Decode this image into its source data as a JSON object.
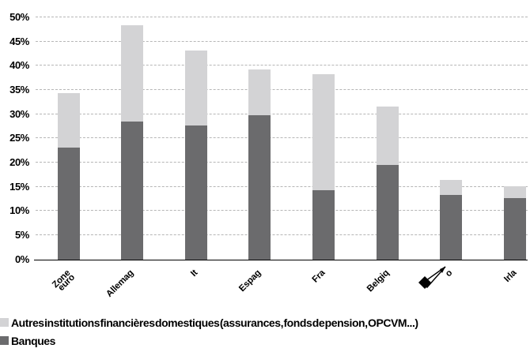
{
  "chart_data": {
    "type": "bar",
    "stacked": true,
    "title": "",
    "xlabel": "",
    "ylabel": "",
    "categories": [
      "Zone euro",
      "Allemag",
      "It",
      "Espag",
      "Fra",
      "Belgiq",
      "o",
      "Irla"
    ],
    "series": [
      {
        "key": "banques",
        "name": "Banques",
        "color": "#6b6b6d",
        "values": [
          23.1,
          28.4,
          27.6,
          29.8,
          14.3,
          19.5,
          13.3,
          12.7
        ]
      },
      {
        "key": "autres",
        "name": "Autres institutions financières domestiques (assurances, fonds de pension, OPCVM...)",
        "color": "#d3d3d5",
        "values": [
          11.2,
          20.0,
          15.6,
          9.5,
          23.9,
          12.0,
          3.1,
          2.4
        ]
      }
    ],
    "totals": [
      34.3,
      48.4,
      43.2,
      39.3,
      38.2,
      31.5,
      16.4,
      15.1
    ],
    "ylim": [
      0,
      50
    ],
    "yticks": [
      0,
      5,
      10,
      15,
      20,
      25,
      30,
      35,
      40,
      45,
      50
    ],
    "ytick_labels": [
      "0 %",
      "5 %",
      "10 %",
      "15 %",
      "20 %",
      "25 %",
      "30 %",
      "35 %",
      "40 %",
      "45 %",
      "50 %"
    ],
    "grid": "horizontal-dashed",
    "gridline_color": "#b6b6b6",
    "axis_color": "#000000",
    "legend_position": "bottom-left",
    "legend": [
      "Autres institutions financières domestiques (assurances, fonds de pension, OPCVM...)",
      "Banques"
    ],
    "annotations": [
      {
        "icon": "pen-cursor-icon",
        "at_category_index": 6,
        "note": "pen cursor covering category label, only letter o visible"
      }
    ]
  }
}
